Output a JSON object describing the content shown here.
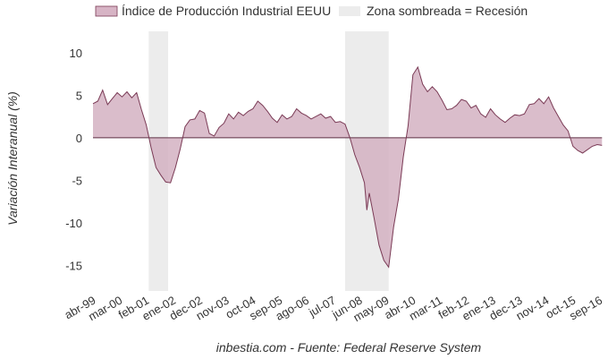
{
  "chart_data": {
    "type": "area",
    "ylabel": "Variación Interanual (%)",
    "source": "inbestia.com - Fuente: Federal Reserve System",
    "ylim": [
      -18,
      12.5
    ],
    "xlim": [
      "1999-04",
      "2016-11"
    ],
    "yticks": [
      10,
      5,
      0,
      -5,
      -10,
      -15
    ],
    "grid": false,
    "legend_placement": "top",
    "legend": [
      {
        "label": "Índice de Producción Industrial EEUU",
        "color": "#d7b4c5"
      },
      {
        "label": "Zona sombreada = Recesión",
        "color": "#ececec"
      }
    ],
    "colors": {
      "area_fill": "#d4b2c2",
      "line": "#7a3a55",
      "recession": "#ececec",
      "zero_line": "#5e2f44"
    },
    "xtick_labels": [
      {
        "label": "abr-99",
        "date": "1999-04"
      },
      {
        "label": "mar-00",
        "date": "2000-03"
      },
      {
        "label": "feb-01",
        "date": "2001-02"
      },
      {
        "label": "ene-02",
        "date": "2002-01"
      },
      {
        "label": "dec-02",
        "date": "2002-12"
      },
      {
        "label": "nov-03",
        "date": "2003-11"
      },
      {
        "label": "oct-04",
        "date": "2004-10"
      },
      {
        "label": "sep-05",
        "date": "2005-09"
      },
      {
        "label": "ago-06",
        "date": "2006-08"
      },
      {
        "label": "jul-07",
        "date": "2007-07"
      },
      {
        "label": "jun-08",
        "date": "2008-06"
      },
      {
        "label": "may-09",
        "date": "2009-05"
      },
      {
        "label": "abr-10",
        "date": "2010-04"
      },
      {
        "label": "mar-11",
        "date": "2011-03"
      },
      {
        "label": "feb-12",
        "date": "2012-02"
      },
      {
        "label": "ene-13",
        "date": "2013-01"
      },
      {
        "label": "dec-13",
        "date": "2013-12"
      },
      {
        "label": "nov-14",
        "date": "2014-11"
      },
      {
        "label": "oct-15",
        "date": "2015-10"
      },
      {
        "label": "sep-16",
        "date": "2016-09"
      }
    ],
    "recessions": [
      [
        "2001-03",
        "2001-11"
      ],
      "2007-12",
      "2009-06"
    ],
    "series": [
      {
        "name": "Índice de Producción Industrial EEUU",
        "x": [
          "1999-04",
          "1999-06",
          "1999-08",
          "1999-10",
          "1999-12",
          "2000-02",
          "2000-04",
          "2000-06",
          "2000-08",
          "2000-10",
          "2000-12",
          "2001-02",
          "2001-04",
          "2001-06",
          "2001-08",
          "2001-10",
          "2001-12",
          "2002-02",
          "2002-04",
          "2002-06",
          "2002-08",
          "2002-10",
          "2002-12",
          "2003-02",
          "2003-04",
          "2003-06",
          "2003-08",
          "2003-10",
          "2003-12",
          "2004-02",
          "2004-04",
          "2004-06",
          "2004-08",
          "2004-10",
          "2004-12",
          "2005-02",
          "2005-04",
          "2005-06",
          "2005-08",
          "2005-10",
          "2005-12",
          "2006-02",
          "2006-04",
          "2006-06",
          "2006-08",
          "2006-10",
          "2006-12",
          "2007-02",
          "2007-04",
          "2007-06",
          "2007-08",
          "2007-10",
          "2007-12",
          "2008-02",
          "2008-04",
          "2008-06",
          "2008-08",
          "2008-09",
          "2008-10",
          "2008-12",
          "2009-02",
          "2009-04",
          "2009-06",
          "2009-08",
          "2009-10",
          "2009-12",
          "2010-02",
          "2010-04",
          "2010-06",
          "2010-08",
          "2010-10",
          "2010-12",
          "2011-02",
          "2011-04",
          "2011-06",
          "2011-08",
          "2011-10",
          "2011-12",
          "2012-02",
          "2012-04",
          "2012-06",
          "2012-08",
          "2012-10",
          "2012-12",
          "2013-02",
          "2013-04",
          "2013-06",
          "2013-08",
          "2013-10",
          "2013-12",
          "2014-02",
          "2014-04",
          "2014-06",
          "2014-08",
          "2014-10",
          "2014-12",
          "2015-02",
          "2015-04",
          "2015-06",
          "2015-08",
          "2015-10",
          "2015-12",
          "2016-02",
          "2016-04",
          "2016-06",
          "2016-08",
          "2016-10"
        ],
        "values": [
          4.0,
          4.3,
          5.6,
          3.9,
          4.6,
          5.3,
          4.8,
          5.4,
          4.7,
          5.3,
          3.3,
          1.5,
          -1.2,
          -3.5,
          -4.4,
          -5.2,
          -5.3,
          -3.5,
          -1.3,
          1.3,
          2.1,
          2.2,
          3.2,
          2.9,
          0.5,
          0.2,
          1.2,
          1.7,
          2.8,
          2.2,
          3.0,
          2.6,
          3.1,
          3.4,
          4.3,
          3.8,
          3.1,
          2.3,
          1.8,
          2.7,
          2.2,
          2.5,
          3.4,
          2.9,
          2.6,
          2.2,
          2.5,
          2.8,
          2.3,
          2.5,
          1.8,
          1.9,
          1.6,
          0.0,
          -2.0,
          -3.5,
          -5.3,
          -8.5,
          -6.5,
          -9.5,
          -12.6,
          -14.4,
          -15.2,
          -10.5,
          -7.2,
          -2.3,
          1.4,
          7.4,
          8.3,
          6.3,
          5.4,
          6.0,
          5.4,
          4.4,
          3.3,
          3.4,
          3.8,
          4.5,
          4.3,
          3.5,
          3.8,
          2.8,
          2.4,
          3.4,
          2.7,
          2.2,
          1.8,
          2.3,
          2.7,
          2.6,
          2.8,
          3.9,
          4.0,
          4.6,
          4.0,
          4.8,
          3.5,
          2.5,
          1.5,
          0.8,
          -1.0,
          -1.5,
          -1.8,
          -1.4,
          -1.0,
          -0.8,
          -0.9
        ]
      }
    ]
  }
}
